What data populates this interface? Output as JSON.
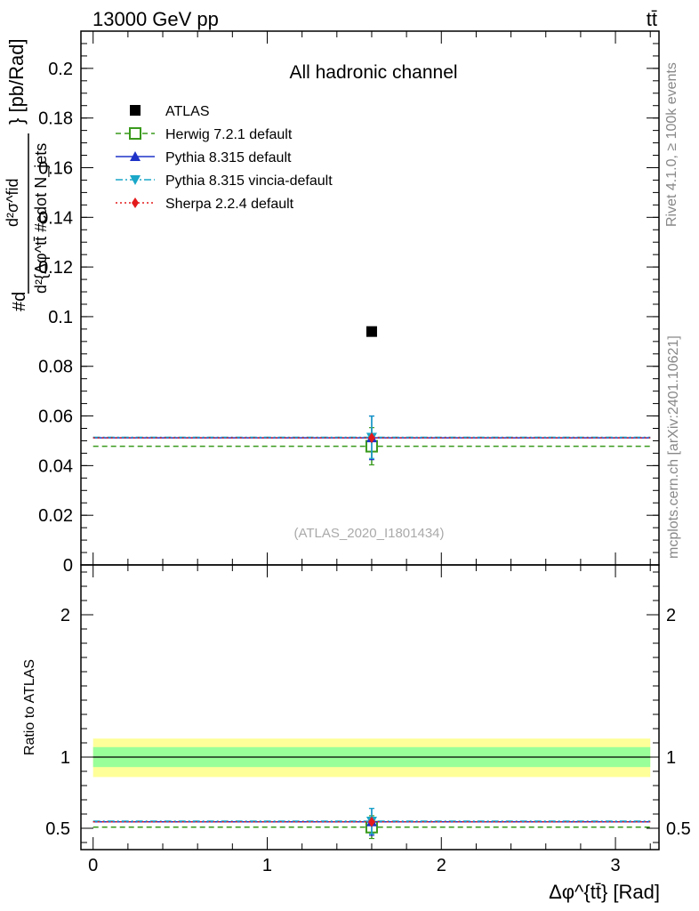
{
  "header": {
    "energy_label": "13000 GeV pp",
    "process_label": "tt̄"
  },
  "side_notes": {
    "rivet": "Rivet 4.1.0, ≥ 100k events",
    "mcplots": "mcplots.cern.ch [arXiv:2401.10621]"
  },
  "chart_data": [
    {
      "type": "scatter",
      "title": "All hadronic channel",
      "watermark": "(ATLAS_2020_I1801434)",
      "xlabel": "Δφ^{tt̄} [Rad]",
      "ylabel": "#d d²σ^{fid} / d²{Δφ^{tt̄}#cdot N_jets} [pb/Rad]",
      "xlim": [
        -0.07,
        3.25
      ],
      "ylim": [
        0,
        0.215
      ],
      "y_ticks": [
        0,
        0.02,
        0.04,
        0.06,
        0.08,
        0.1,
        0.12,
        0.14,
        0.16,
        0.18,
        0.2
      ],
      "y_tick_labels": [
        "0",
        "0.02",
        "0.04",
        "0.06",
        "0.08",
        "0.1",
        "0.12",
        "0.14",
        "0.16",
        "0.18",
        "0.2"
      ],
      "bin": [
        0,
        3.2
      ],
      "series": [
        {
          "name": "ATLAS",
          "style": "data",
          "color": "#000000",
          "marker": "square",
          "x": 1.6,
          "y": 0.094,
          "yerr": 0
        },
        {
          "name": "Herwig 7.2.1 default",
          "style": "dashed",
          "color": "#3a9a1c",
          "marker": "open-square",
          "x": 1.6,
          "y": 0.0478,
          "yerr": 0.0075
        },
        {
          "name": "Pythia 8.315 default",
          "style": "solid",
          "color": "#1f33c8",
          "marker": "triangle-up",
          "x": 1.6,
          "y": 0.0512,
          "yerr": 0.0088
        },
        {
          "name": "Pythia 8.315 vincia-default",
          "style": "dashdot",
          "color": "#1aa7c8",
          "marker": "triangle-down",
          "x": 1.6,
          "y": 0.0514,
          "yerr": 0.0085
        },
        {
          "name": "Sherpa 2.2.4 default",
          "style": "dotted",
          "color": "#e31a1c",
          "marker": "diamond",
          "x": 1.6,
          "y": 0.0512,
          "yerr": 0
        }
      ]
    },
    {
      "type": "scatter",
      "title": "",
      "xlabel": "Δφ^{tt̄} [Rad]",
      "ylabel": "Ratio to ATLAS",
      "xlim": [
        -0.07,
        3.25
      ],
      "ylim": [
        0.35,
        2.35
      ],
      "y_ticks": [
        0.5,
        1,
        2
      ],
      "y_tick_labels": [
        "0.5",
        "1",
        "2"
      ],
      "x_ticks": [
        0,
        1,
        2,
        3
      ],
      "x_tick_labels": [
        "0",
        "1",
        "2",
        "3"
      ],
      "bands": {
        "inner": [
          0.93,
          1.07
        ],
        "outer": [
          0.86,
          1.13
        ],
        "inner_color": "#99ff99",
        "outer_color": "#ffff99"
      },
      "series": [
        {
          "name": "Herwig 7.2.1 default",
          "style": "dashed",
          "color": "#3a9a1c",
          "marker": "open-square",
          "x": 1.6,
          "y": 0.508,
          "yerr": 0.08
        },
        {
          "name": "Pythia 8.315 default",
          "style": "solid",
          "color": "#1f33c8",
          "marker": "triangle-up",
          "x": 1.6,
          "y": 0.545,
          "yerr": 0.095
        },
        {
          "name": "Pythia 8.315 vincia-default",
          "style": "dashdot",
          "color": "#1aa7c8",
          "marker": "triangle-down",
          "x": 1.6,
          "y": 0.55,
          "yerr": 0.09
        },
        {
          "name": "Sherpa 2.2.4 default",
          "style": "dotted",
          "color": "#e31a1c",
          "marker": "diamond",
          "x": 1.6,
          "y": 0.545,
          "yerr": 0
        }
      ]
    }
  ]
}
